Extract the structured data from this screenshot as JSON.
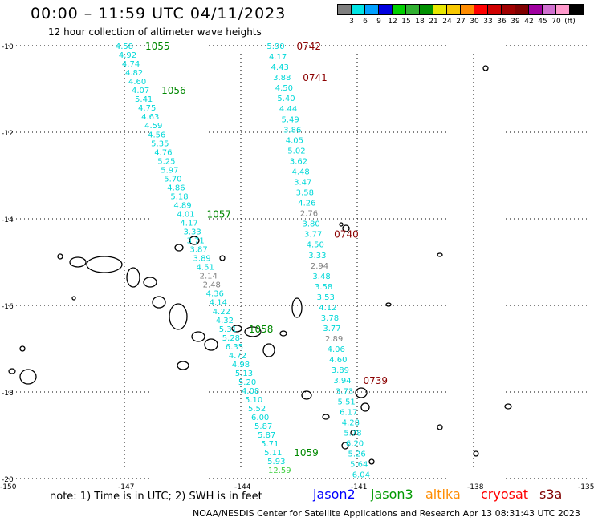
{
  "header": {
    "title": "00:00 – 11:59 UTC 04/11/2023",
    "subtitle": "12 hour collection of altimeter wave heights"
  },
  "colorbar": {
    "colors": [
      "#7f7f7f",
      "#00e5e5",
      "#00a0ff",
      "#0000e0",
      "#00d000",
      "#30b030",
      "#009000",
      "#e8e800",
      "#f8c800",
      "#ff8c00",
      "#ff0000",
      "#d00000",
      "#a00000",
      "#800000",
      "#a000a0",
      "#d070d0",
      "#ff99cc",
      "#000000"
    ],
    "labels": [
      "3",
      "6",
      "9",
      "12",
      "15",
      "18",
      "21",
      "24",
      "27",
      "30",
      "33",
      "36",
      "39",
      "42",
      "45",
      "70",
      "(ft)"
    ]
  },
  "map": {
    "lat_labels": [
      "-10",
      "-12",
      "-14",
      "-16",
      "-18",
      "-20"
    ],
    "lon_labels": [
      "-150",
      "-147",
      "-144",
      "-141",
      "-138",
      "-135"
    ],
    "tracks": [
      {
        "satellite": "jason3",
        "color": "#00d8d8",
        "start": [
          -147.0,
          -10.0
        ],
        "end": [
          -143.0,
          -19.8
        ],
        "values": [
          "4.58",
          "4.92",
          "4.74",
          "4.82",
          "4.60",
          "4.07",
          "5.41",
          "4.75",
          "4.63",
          "4.59",
          "4.56",
          "5.35",
          "4.76",
          "5.25",
          "5.97",
          "5.70",
          "4.86",
          "5.18",
          "4.89",
          "4.01",
          "4.17",
          "3.33",
          "3.71",
          "3.87",
          "3.89",
          "4.51",
          "2.14",
          "2.48",
          "4.36",
          "4.14",
          "4.22",
          "4.32",
          "5.31",
          "5.28",
          "6.35",
          "4.72",
          "4.98",
          "5.13",
          "5.20",
          "4.08",
          "5.10",
          "5.52",
          "6.00",
          "5.87",
          "5.87",
          "5.71",
          "5.11",
          "5.93",
          "12.59"
        ],
        "pass_labels": [
          {
            "text": "1055",
            "index": 0
          },
          {
            "text": "1056",
            "index": 5
          },
          {
            "text": "1057",
            "index": 19
          },
          {
            "text": "1058",
            "index": 32
          },
          {
            "text": "1059",
            "index": 46
          }
        ],
        "pass_color": "#008800"
      },
      {
        "satellite": "cryosat",
        "color": "#00d8d8",
        "start": [
          -143.1,
          -10.0
        ],
        "end": [
          -140.9,
          -19.9
        ],
        "values": [
          "5.90",
          "4.17",
          "4.43",
          "3.88",
          "4.50",
          "5.40",
          "4.44",
          "5.49",
          "3.86",
          "4.05",
          "5.02",
          "3.62",
          "4.48",
          "3.47",
          "3.58",
          "4.26",
          "2.76",
          "3.80",
          "3.77",
          "4.50",
          "3.33",
          "2.94",
          "3.48",
          "3.58",
          "3.53",
          "4.12",
          "3.78",
          "3.77",
          "2.89",
          "4.06",
          "4.60",
          "3.89",
          "3.94",
          "3.73",
          "5.51",
          "6.17",
          "4.28",
          "5.78",
          "6.20",
          "5.26",
          "5.64",
          "6.04"
        ],
        "pass_labels": [
          {
            "text": "0742",
            "index": 0
          },
          {
            "text": "0741",
            "index": 3
          },
          {
            "text": "0740",
            "index": 18
          },
          {
            "text": "0739",
            "index": 32
          }
        ],
        "pass_color": "#8b0000"
      }
    ]
  },
  "footer": {
    "note": "note: 1) Time is in UTC; 2) SWH is in feet",
    "satellites": [
      {
        "name": "jason2",
        "color": "#0000ff"
      },
      {
        "name": "jason3",
        "color": "#009900"
      },
      {
        "name": "altika",
        "color": "#ff8c00"
      },
      {
        "name": "cryosat",
        "color": "#ff0000"
      },
      {
        "name": "s3a",
        "color": "#800000"
      }
    ],
    "credit": "NOAA/NESDIS Center for Satellite Applications and Research   Apr 13 08:31:43 UTC 2023"
  }
}
